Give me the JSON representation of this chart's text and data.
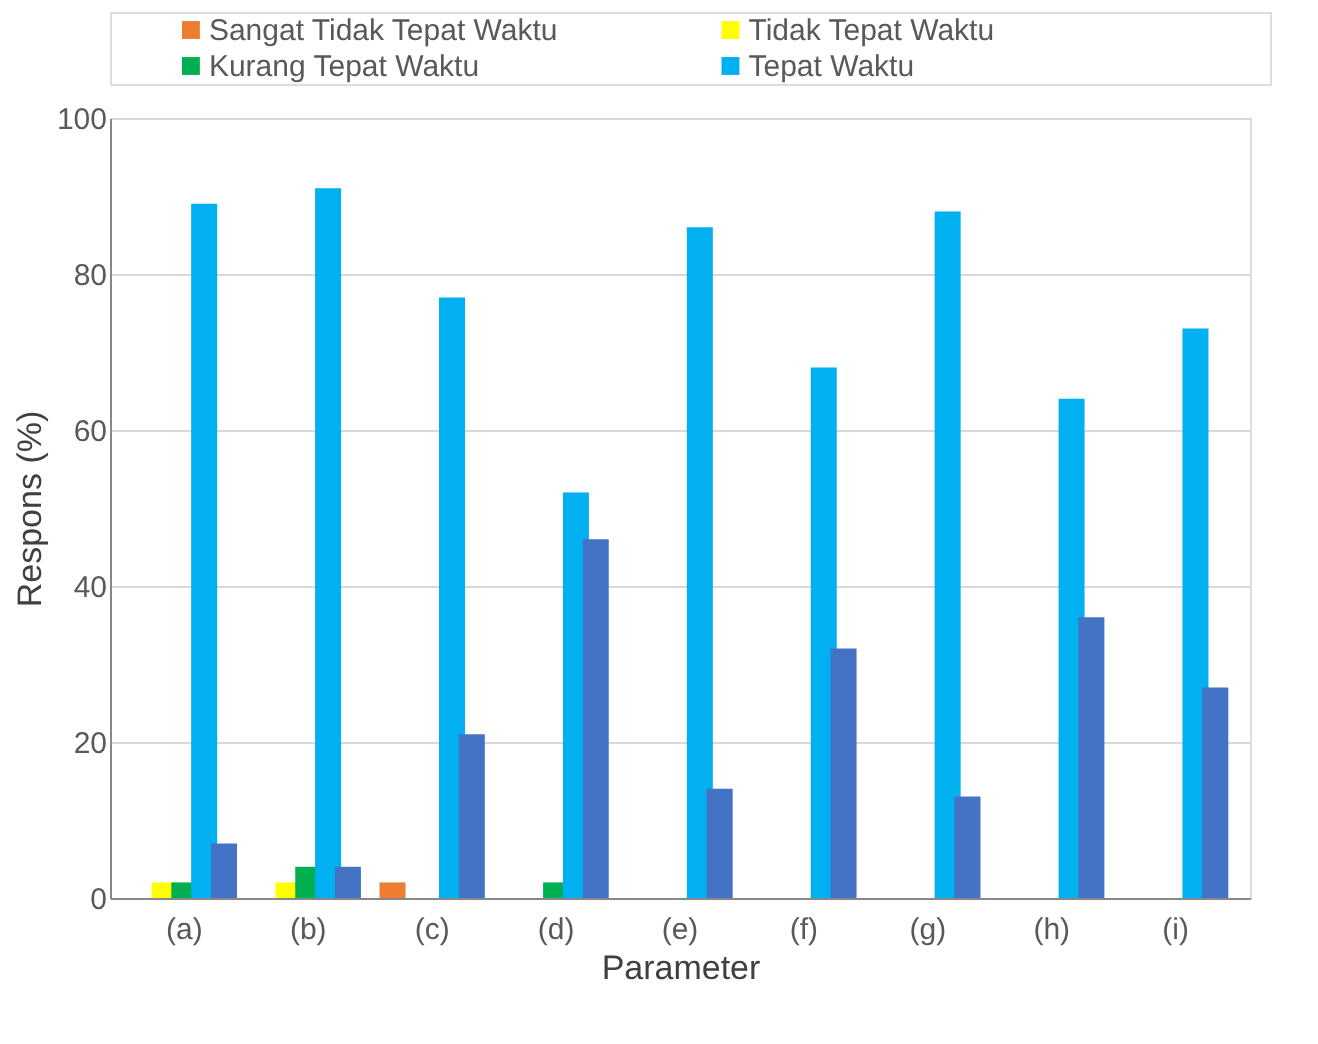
{
  "chart_data": {
    "type": "bar",
    "xlabel": "Parameter",
    "ylabel": "Respons (%)",
    "categories": [
      "(a)",
      "(b)",
      "(c)",
      "(d)",
      "(e)",
      "(f)",
      "(g)",
      "(h)",
      "(i)"
    ],
    "series": [
      {
        "name": "Sangat Tidak Tepat Waktu",
        "color": "#ed7d31",
        "values": [
          0,
          0,
          2,
          0,
          0,
          0,
          0,
          0,
          0
        ]
      },
      {
        "name": "Tidak Tepat Waktu",
        "color": "#ffff00",
        "values": [
          2,
          2,
          0,
          0,
          0,
          0,
          0,
          0,
          0
        ]
      },
      {
        "name": "Kurang Tepat Waktu",
        "color": "#00b050",
        "values": [
          2,
          4,
          0,
          2,
          0,
          0,
          0,
          0,
          0
        ]
      },
      {
        "name": "Tepat Waktu",
        "color": "#00b0f0",
        "values": [
          89,
          91,
          77,
          52,
          86,
          68,
          88,
          64,
          73
        ]
      },
      {
        "color": "#4472c4",
        "values": [
          7,
          4,
          21,
          46,
          14,
          32,
          13,
          36,
          27
        ]
      }
    ],
    "ylim": [
      0,
      100
    ],
    "yticks": [
      0,
      20,
      40,
      60,
      80,
      100
    ],
    "grid": "y",
    "legend": "top"
  }
}
